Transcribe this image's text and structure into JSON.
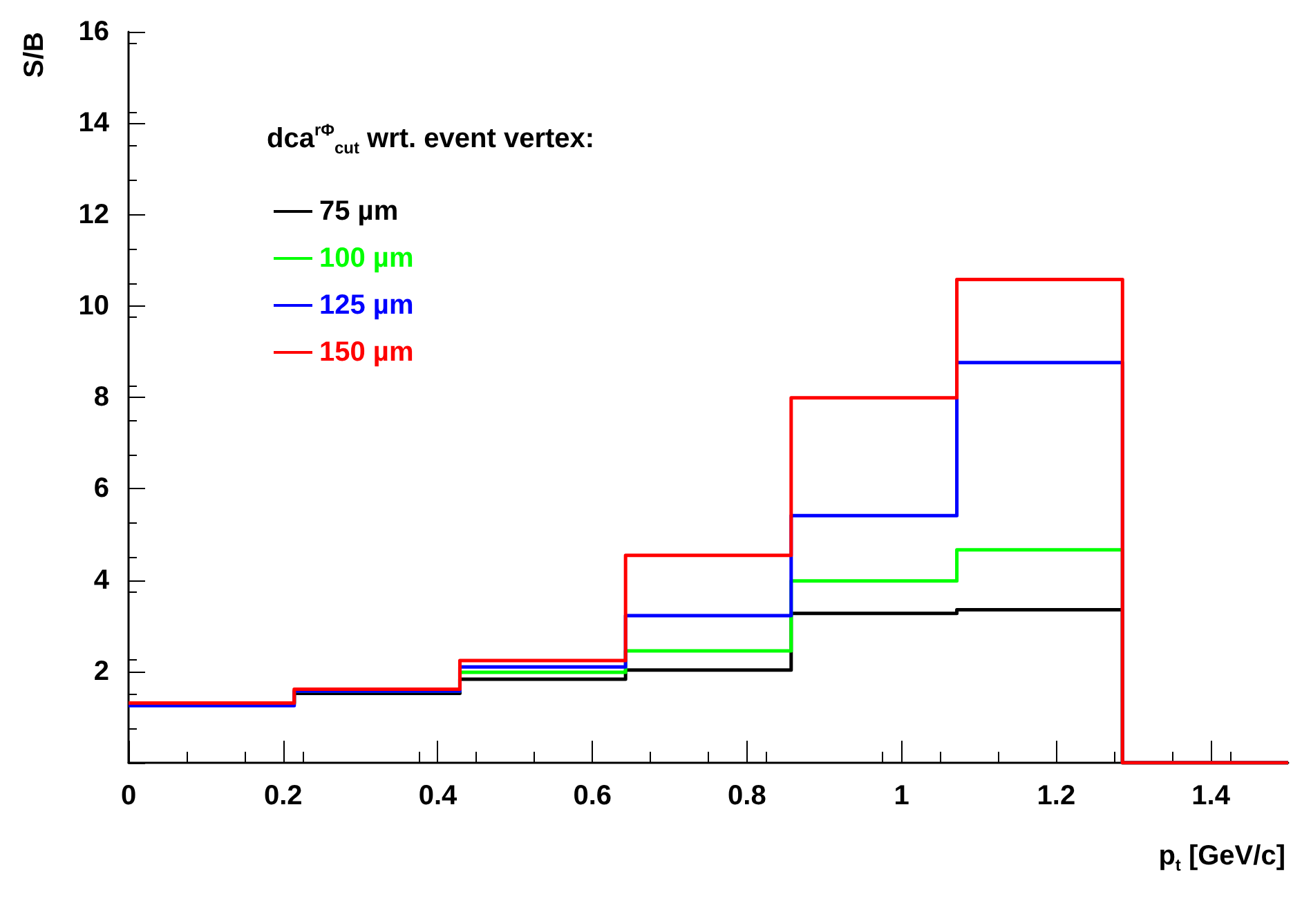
{
  "chart_data": {
    "type": "histogram",
    "xlabel": "p$_{t}$ [GeV/c]",
    "ylabel": "S/B",
    "legend_title": "dca$^{rΦ}$$_{cut}$ wrt. event vertex:",
    "bins": [
      0,
      0.2143,
      0.4286,
      0.6429,
      0.8571,
      1.0714,
      1.2857,
      1.5
    ],
    "series": [
      {
        "name": "75 µm",
        "color": "#000000",
        "values": [
          1.31,
          1.52,
          1.83,
          2.03,
          3.27,
          3.35,
          0
        ]
      },
      {
        "name": "100 µm",
        "color": "#00ff00",
        "values": [
          1.28,
          1.57,
          1.98,
          2.45,
          3.98,
          4.66,
          0
        ]
      },
      {
        "name": "125 µm",
        "color": "#0000ff",
        "values": [
          1.25,
          1.57,
          2.1,
          3.22,
          5.41,
          8.76,
          0
        ]
      },
      {
        "name": "150 µm",
        "color": "#ff0000",
        "values": [
          1.31,
          1.61,
          2.24,
          4.54,
          7.99,
          10.58,
          0
        ]
      }
    ],
    "xlim": [
      0,
      1.5
    ],
    "xticks": [
      0,
      0.2,
      0.4,
      0.6,
      0.8,
      1,
      1.2,
      1.4
    ],
    "ylim": [
      0,
      16
    ],
    "yticks": [
      {
        "value": 0,
        "label": null
      },
      2,
      4,
      6,
      8,
      10,
      12,
      14,
      16
    ],
    "legend": "top left",
    "grid": false,
    "marker": "none"
  }
}
